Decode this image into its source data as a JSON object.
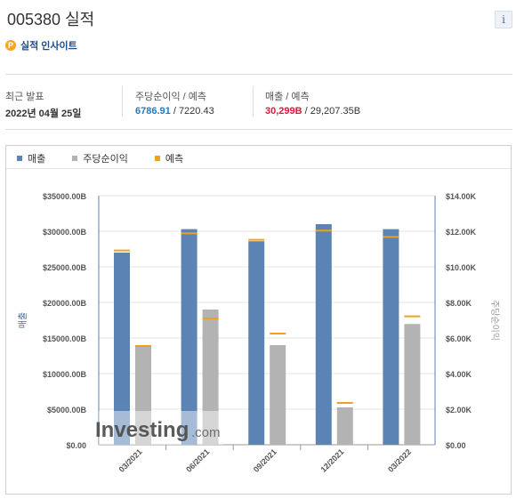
{
  "header": {
    "title": "005380 실적",
    "info_icon": "i"
  },
  "insight": {
    "icon": "P",
    "label": "실적 인사이트"
  },
  "stats": {
    "recent_label": "최근 발표",
    "recent_date": "2022년 04월 25일",
    "eps_label": "주당순이익 / 예측",
    "eps_actual": "6786.91",
    "eps_sep": " / ",
    "eps_forecast": "7220.43",
    "rev_label": "매출 / 예측",
    "rev_actual": "30,299B",
    "rev_sep": " / ",
    "rev_forecast": "29,207.35B"
  },
  "legend": {
    "revenue": "매출",
    "eps": "주당순이익",
    "forecast": "예측"
  },
  "colors": {
    "revenue": "#5b83b4",
    "eps": "#b3b3b3",
    "forecast": "#f0a020"
  },
  "watermark": {
    "brand": "Investing",
    "suffix": ".com"
  },
  "chart_data": {
    "type": "bar",
    "categories": [
      "03/2021",
      "06/2021",
      "09/2021",
      "12/2021",
      "03/2022"
    ],
    "series": [
      {
        "name": "매출",
        "axis": "left",
        "values": [
          27000,
          30300,
          28600,
          31000,
          30299
        ]
      },
      {
        "name": "주당순이익",
        "axis": "right",
        "values": [
          5600,
          7600,
          5600,
          2100,
          6786.91
        ]
      }
    ],
    "forecasts": {
      "revenue": [
        27300,
        29700,
        28800,
        30100,
        29207.35
      ],
      "eps": [
        5550,
        7100,
        6250,
        2350,
        7220.43
      ]
    },
    "ylabel_left": "매출",
    "ylabel_right": "주당순이익",
    "left_ticks": [
      "$0.00",
      "$5000.00B",
      "$10000.00B",
      "$15000.00B",
      "$20000.00B",
      "$25000.00B",
      "$30000.00B",
      "$35000.00B"
    ],
    "right_ticks": [
      "$0.00",
      "$2.00K",
      "$4.00K",
      "$6.00K",
      "$8.00K",
      "$10.00K",
      "$12.00K",
      "$14.00K"
    ],
    "ylim_left": [
      0,
      35000
    ],
    "ylim_right": [
      0,
      14000
    ],
    "grid": true,
    "legend_position": "top-left"
  }
}
